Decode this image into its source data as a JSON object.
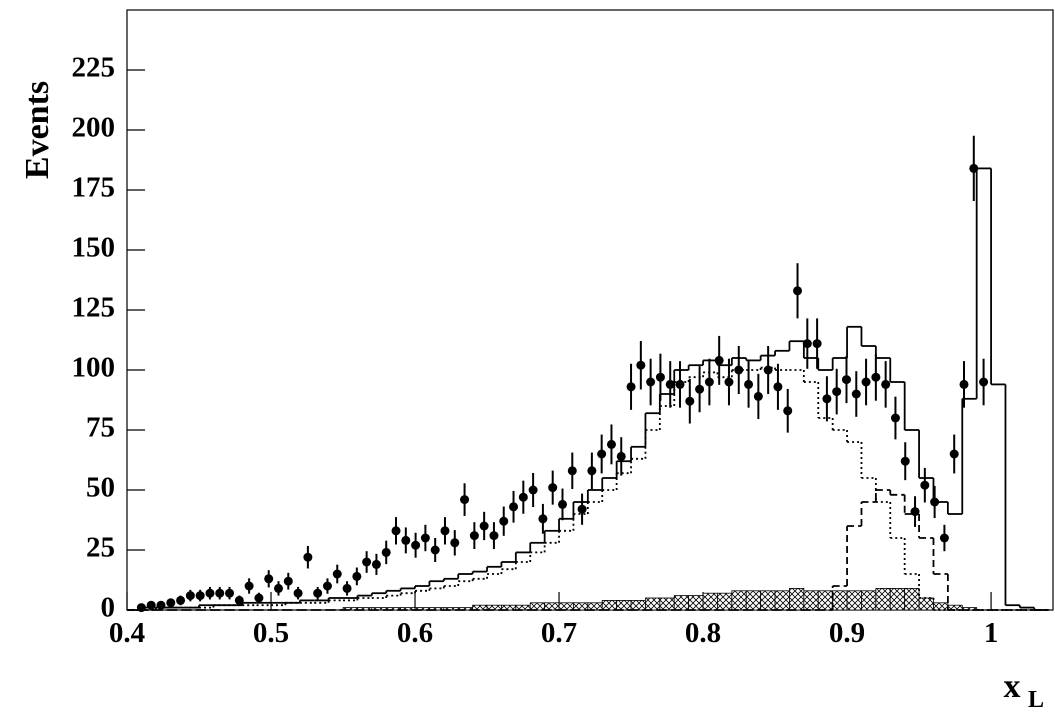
{
  "chart_data": {
    "type": "histogram",
    "y_label": "Events",
    "x_label": "x",
    "x_label_sub": "L",
    "xlim": [
      0.4,
      1.043
    ],
    "ylim": [
      0,
      250
    ],
    "xticks": [
      0.4,
      0.5,
      0.6,
      0.7,
      0.8,
      0.9,
      1
    ],
    "yticks": [
      0,
      25,
      50,
      75,
      100,
      125,
      150,
      175,
      200,
      225
    ],
    "bins": [
      0.4,
      0.41,
      0.42,
      0.43,
      0.44,
      0.45,
      0.46,
      0.47,
      0.48,
      0.49,
      0.5,
      0.51,
      0.52,
      0.53,
      0.54,
      0.55,
      0.56,
      0.57,
      0.58,
      0.59,
      0.6,
      0.61,
      0.62,
      0.63,
      0.64,
      0.65,
      0.66,
      0.67,
      0.68,
      0.69,
      0.7,
      0.71,
      0.72,
      0.73,
      0.74,
      0.75,
      0.76,
      0.77,
      0.78,
      0.79,
      0.8,
      0.81,
      0.82,
      0.83,
      0.84,
      0.85,
      0.86,
      0.87,
      0.88,
      0.89,
      0.9,
      0.91,
      0.92,
      0.93,
      0.94,
      0.95,
      0.96,
      0.97,
      0.98,
      0.99,
      1.0,
      1.01,
      1.02,
      1.03,
      1.04
    ],
    "series": [
      {
        "style": "hatched",
        "color": "#000000",
        "values": [
          0,
          0,
          0,
          0,
          0,
          0,
          0,
          0,
          0,
          0,
          0,
          0,
          0,
          0,
          0,
          1,
          1,
          1,
          1,
          1,
          1,
          1,
          1,
          1,
          2,
          2,
          2,
          2,
          3,
          3,
          3,
          3,
          3,
          4,
          4,
          4,
          5,
          5,
          6,
          6,
          7,
          7,
          8,
          8,
          8,
          8,
          9,
          8,
          8,
          8,
          8,
          8,
          9,
          9,
          9,
          5,
          3,
          2,
          1,
          0,
          0,
          0,
          0,
          0
        ]
      },
      {
        "style": "dotted",
        "color": "#000000",
        "values": [
          0,
          0,
          1,
          1,
          1,
          1,
          2,
          2,
          2,
          2,
          2,
          3,
          3,
          3,
          4,
          4,
          5,
          5,
          6,
          7,
          8,
          9,
          10,
          12,
          13,
          15,
          17,
          20,
          24,
          28,
          33,
          40,
          45,
          50,
          57,
          63,
          75,
          85,
          95,
          97,
          99,
          97,
          100,
          100,
          101,
          100,
          100,
          95,
          80,
          75,
          70,
          55,
          45,
          30,
          15,
          5,
          0,
          0,
          0,
          0,
          0,
          0,
          0,
          0
        ]
      },
      {
        "style": "dashed",
        "color": "#000000",
        "values": [
          0,
          0,
          0,
          0,
          0,
          0,
          0,
          0,
          0,
          0,
          0,
          0,
          0,
          0,
          0,
          0,
          0,
          0,
          0,
          0,
          0,
          0,
          0,
          0,
          0,
          0,
          0,
          0,
          0,
          0,
          0,
          0,
          0,
          0,
          0,
          0,
          0,
          0,
          0,
          0,
          0,
          0,
          0,
          0,
          0,
          0,
          0,
          0,
          0,
          10,
          35,
          45,
          50,
          48,
          40,
          30,
          15,
          0,
          0,
          0,
          0,
          0,
          0,
          0
        ]
      },
      {
        "style": "solid",
        "color": "#000000",
        "values": [
          0,
          1,
          1,
          1,
          1,
          2,
          2,
          2,
          3,
          3,
          3,
          3,
          4,
          4,
          5,
          5,
          6,
          7,
          8,
          9,
          10,
          12,
          13,
          15,
          16,
          18,
          20,
          24,
          28,
          33,
          38,
          45,
          50,
          55,
          62,
          68,
          82,
          90,
          100,
          102,
          104,
          102,
          105,
          104,
          106,
          108,
          112,
          105,
          100,
          105,
          118,
          110,
          105,
          95,
          75,
          55,
          45,
          40,
          88,
          184,
          94,
          2,
          1,
          0
        ]
      }
    ],
    "points": {
      "color": "#000000",
      "x": [
        0.41,
        0.4168,
        0.4236,
        0.4304,
        0.4372,
        0.444,
        0.4508,
        0.4576,
        0.4644,
        0.4712,
        0.478,
        0.4848,
        0.4916,
        0.4984,
        0.5052,
        0.512,
        0.5188,
        0.5256,
        0.5324,
        0.5392,
        0.546,
        0.5528,
        0.5596,
        0.5664,
        0.5732,
        0.58,
        0.5868,
        0.5936,
        0.6004,
        0.6072,
        0.614,
        0.6208,
        0.6276,
        0.6344,
        0.6412,
        0.648,
        0.6548,
        0.6616,
        0.6684,
        0.6752,
        0.682,
        0.6888,
        0.6956,
        0.7024,
        0.7092,
        0.716,
        0.7228,
        0.7296,
        0.7364,
        0.7432,
        0.75,
        0.7568,
        0.7636,
        0.7704,
        0.7772,
        0.784,
        0.7908,
        0.7976,
        0.8044,
        0.8112,
        0.818,
        0.8248,
        0.8316,
        0.8384,
        0.8452,
        0.852,
        0.8588,
        0.8656,
        0.8724,
        0.8792,
        0.886,
        0.8928,
        0.8996,
        0.9064,
        0.9132,
        0.92,
        0.9268,
        0.9336,
        0.9404,
        0.9472,
        0.954,
        0.9608,
        0.9676,
        0.9744,
        0.9812,
        0.988,
        0.9948
      ],
      "values": [
        1,
        2,
        2,
        3,
        4,
        6,
        6,
        7,
        7,
        7,
        4,
        10,
        5,
        13,
        9,
        12,
        7,
        22,
        7,
        10,
        15,
        9,
        14,
        20,
        19,
        24,
        33,
        29,
        27,
        30,
        25,
        33,
        28,
        46,
        31,
        35,
        31,
        37,
        43,
        47,
        50,
        38,
        51,
        44,
        58,
        42,
        58,
        65,
        69,
        64,
        93,
        102,
        95,
        97,
        94,
        94,
        87,
        92,
        95,
        104,
        95,
        100,
        94,
        89,
        100,
        93,
        83,
        133,
        111,
        111,
        88,
        91,
        96,
        90,
        95,
        97,
        94,
        80,
        62,
        41,
        52,
        45,
        30,
        65,
        94,
        184,
        95
      ],
      "errors": [
        1,
        1.4,
        1.4,
        1.7,
        2,
        2.4,
        2.4,
        2.6,
        2.6,
        2.6,
        2,
        3.2,
        2.2,
        3.6,
        3,
        3.5,
        2.6,
        4.7,
        2.6,
        3.2,
        3.9,
        3,
        3.7,
        4.5,
        4.4,
        4.9,
        5.7,
        5.4,
        5.2,
        5.5,
        5,
        5.7,
        5.3,
        6.8,
        5.6,
        5.9,
        5.6,
        6.1,
        6.6,
        6.9,
        7.1,
        6.2,
        7.1,
        6.6,
        7.6,
        6.5,
        7.6,
        8.1,
        8.3,
        8,
        9.6,
        10.1,
        9.7,
        9.8,
        9.7,
        9.7,
        9.3,
        9.6,
        9.7,
        10.2,
        9.7,
        10,
        9.7,
        9.4,
        10,
        9.6,
        9.1,
        11.5,
        10.5,
        10.5,
        9.4,
        9.5,
        9.8,
        9.5,
        9.7,
        9.8,
        9.7,
        8.9,
        7.9,
        6.4,
        7.2,
        6.7,
        5.5,
        8.1,
        9.7,
        13.6,
        9.7
      ]
    }
  }
}
